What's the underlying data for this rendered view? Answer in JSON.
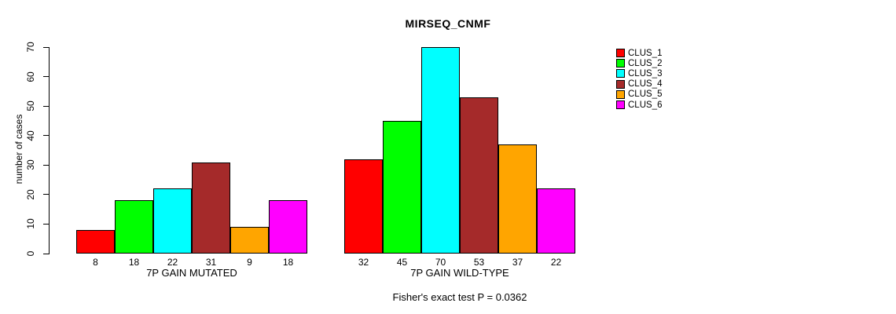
{
  "chart_data": {
    "type": "bar",
    "title": "MIRSEQ_CNMF",
    "ylabel": "number of cases",
    "ylim": [
      0,
      70
    ],
    "yticks": [
      0,
      10,
      20,
      30,
      40,
      50,
      60,
      70
    ],
    "categories": [
      "CLUS_1",
      "CLUS_2",
      "CLUS_3",
      "CLUS_4",
      "CLUS_5",
      "CLUS_6"
    ],
    "series_colors": [
      "#FF0000",
      "#00FF00",
      "#00FFFF",
      "#A52A2A",
      "#FFA500",
      "#FF00FF"
    ],
    "groups": [
      {
        "label": "7P GAIN MUTATED",
        "values": [
          8,
          18,
          22,
          31,
          9,
          18
        ]
      },
      {
        "label": "7P GAIN WILD-TYPE",
        "values": [
          32,
          45,
          70,
          53,
          37,
          22
        ]
      }
    ],
    "legend": {
      "position": "right",
      "entries": [
        {
          "label": "CLUS_1",
          "color": "#FF0000"
        },
        {
          "label": "CLUS_2",
          "color": "#00FF00"
        },
        {
          "label": "CLUS_3",
          "color": "#00FFFF"
        },
        {
          "label": "CLUS_4",
          "color": "#A52A2A"
        },
        {
          "label": "CLUS_5",
          "color": "#FFA500"
        },
        {
          "label": "CLUS_6",
          "color": "#FF00FF"
        }
      ]
    },
    "annotation": "Fisher's exact test P = 0.0362",
    "bar_value_labels": true,
    "grid": false,
    "axis_color": "#000000",
    "background_color": "#FFFFFF"
  }
}
